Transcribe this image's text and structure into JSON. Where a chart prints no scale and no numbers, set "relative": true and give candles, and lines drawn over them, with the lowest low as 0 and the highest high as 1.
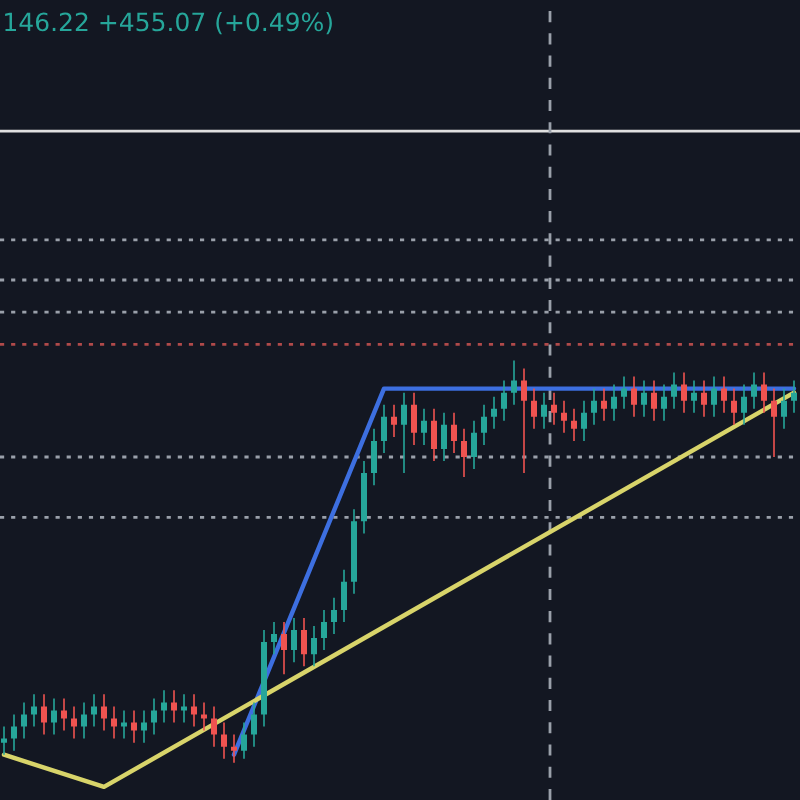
{
  "chart_data": {
    "type": "candlestick",
    "relative": true,
    "annotations": [
      "146.22 +455.07 (+0.49%)"
    ],
    "categories": [
      null,
      null,
      null,
      null,
      null,
      null,
      null,
      null,
      null,
      null,
      null,
      null,
      null,
      null,
      null,
      null,
      null,
      null,
      null,
      null,
      null,
      null,
      null,
      null,
      null,
      null,
      null,
      null,
      null,
      null,
      null,
      null,
      null,
      null,
      null,
      null,
      null,
      null,
      null,
      null,
      null,
      null,
      null,
      null,
      null,
      null,
      null,
      null,
      null,
      null,
      null,
      null,
      null,
      null,
      null,
      null,
      null,
      null,
      null,
      null,
      null,
      null,
      null,
      null,
      null,
      null,
      null,
      null,
      null,
      null,
      null,
      null,
      null,
      null,
      null,
      null,
      null,
      null,
      null,
      null
    ],
    "ohlc": [
      [
        0.05,
        0.09,
        0.02,
        0.06
      ],
      [
        0.06,
        0.12,
        0.03,
        0.09
      ],
      [
        0.09,
        0.15,
        0.06,
        0.12
      ],
      [
        0.12,
        0.17,
        0.09,
        0.14
      ],
      [
        0.14,
        0.17,
        0.07,
        0.1
      ],
      [
        0.1,
        0.16,
        0.07,
        0.13
      ],
      [
        0.13,
        0.16,
        0.08,
        0.11
      ],
      [
        0.11,
        0.14,
        0.06,
        0.09
      ],
      [
        0.09,
        0.15,
        0.06,
        0.12
      ],
      [
        0.12,
        0.17,
        0.09,
        0.14
      ],
      [
        0.14,
        0.17,
        0.08,
        0.11
      ],
      [
        0.11,
        0.14,
        0.06,
        0.09
      ],
      [
        0.09,
        0.13,
        0.06,
        0.1
      ],
      [
        0.1,
        0.13,
        0.05,
        0.08
      ],
      [
        0.08,
        0.13,
        0.05,
        0.1
      ],
      [
        0.1,
        0.16,
        0.07,
        0.13
      ],
      [
        0.13,
        0.18,
        0.1,
        0.15
      ],
      [
        0.15,
        0.18,
        0.1,
        0.13
      ],
      [
        0.13,
        0.17,
        0.1,
        0.14
      ],
      [
        0.14,
        0.17,
        0.09,
        0.12
      ],
      [
        0.12,
        0.15,
        0.08,
        0.11
      ],
      [
        0.11,
        0.14,
        0.04,
        0.07
      ],
      [
        0.07,
        0.1,
        0.01,
        0.04
      ],
      [
        0.04,
        0.07,
        0,
        0.03
      ],
      [
        0.03,
        0.1,
        0.01,
        0.07
      ],
      [
        0.07,
        0.15,
        0.04,
        0.12
      ],
      [
        0.12,
        0.33,
        0.09,
        0.3
      ],
      [
        0.3,
        0.35,
        0.27,
        0.32
      ],
      [
        0.32,
        0.35,
        0.22,
        0.28
      ],
      [
        0.28,
        0.36,
        0.25,
        0.33
      ],
      [
        0.33,
        0.36,
        0.24,
        0.27
      ],
      [
        0.27,
        0.34,
        0.24,
        0.31
      ],
      [
        0.31,
        0.38,
        0.28,
        0.35
      ],
      [
        0.35,
        0.41,
        0.32,
        0.38
      ],
      [
        0.38,
        0.48,
        0.35,
        0.45
      ],
      [
        0.45,
        0.63,
        0.42,
        0.6
      ],
      [
        0.6,
        0.75,
        0.57,
        0.72
      ],
      [
        0.72,
        0.83,
        0.69,
        0.8
      ],
      [
        0.8,
        0.89,
        0.77,
        0.86
      ],
      [
        0.86,
        0.89,
        0.81,
        0.84
      ],
      [
        0.84,
        0.92,
        0.72,
        0.89
      ],
      [
        0.89,
        0.92,
        0.79,
        0.82
      ],
      [
        0.82,
        0.88,
        0.79,
        0.85
      ],
      [
        0.85,
        0.88,
        0.75,
        0.78
      ],
      [
        0.78,
        0.87,
        0.75,
        0.84
      ],
      [
        0.84,
        0.87,
        0.77,
        0.8
      ],
      [
        0.8,
        0.83,
        0.71,
        0.76
      ],
      [
        0.76,
        0.85,
        0.73,
        0.82
      ],
      [
        0.82,
        0.89,
        0.79,
        0.86
      ],
      [
        0.86,
        0.91,
        0.83,
        0.88
      ],
      [
        0.88,
        0.95,
        0.85,
        0.92
      ],
      [
        0.92,
        1,
        0.89,
        0.95
      ],
      [
        0.95,
        0.98,
        0.72,
        0.9
      ],
      [
        0.9,
        0.93,
        0.83,
        0.86
      ],
      [
        0.86,
        0.92,
        0.83,
        0.89
      ],
      [
        0.89,
        0.92,
        0.84,
        0.87
      ],
      [
        0.87,
        0.9,
        0.82,
        0.85
      ],
      [
        0.85,
        0.88,
        0.8,
        0.83
      ],
      [
        0.83,
        0.9,
        0.8,
        0.87
      ],
      [
        0.87,
        0.93,
        0.84,
        0.9
      ],
      [
        0.9,
        0.93,
        0.85,
        0.88
      ],
      [
        0.88,
        0.94,
        0.85,
        0.91
      ],
      [
        0.91,
        0.96,
        0.88,
        0.93
      ],
      [
        0.93,
        0.96,
        0.86,
        0.89
      ],
      [
        0.89,
        0.95,
        0.86,
        0.92
      ],
      [
        0.92,
        0.95,
        0.85,
        0.88
      ],
      [
        0.88,
        0.94,
        0.85,
        0.91
      ],
      [
        0.91,
        0.97,
        0.88,
        0.94
      ],
      [
        0.94,
        0.97,
        0.87,
        0.9
      ],
      [
        0.9,
        0.95,
        0.87,
        0.92
      ],
      [
        0.92,
        0.95,
        0.86,
        0.89
      ],
      [
        0.89,
        0.96,
        0.86,
        0.93
      ],
      [
        0.93,
        0.96,
        0.87,
        0.9
      ],
      [
        0.9,
        0.93,
        0.84,
        0.87
      ],
      [
        0.87,
        0.94,
        0.84,
        0.91
      ],
      [
        0.91,
        0.97,
        0.88,
        0.94
      ],
      [
        0.94,
        0.97,
        0.87,
        0.9
      ],
      [
        0.9,
        0.93,
        0.76,
        0.86
      ],
      [
        0.86,
        0.93,
        0.83,
        0.9
      ],
      [
        0.9,
        0.95,
        0.87,
        0.92
      ]
    ],
    "series": [
      {
        "type": "line",
        "color": "#3d6fe0",
        "values": [
          null,
          null,
          null,
          null,
          null,
          null,
          null,
          null,
          null,
          null,
          null,
          null,
          null,
          null,
          null,
          null,
          null,
          null,
          null,
          null,
          null,
          null,
          null,
          0.02,
          null,
          null,
          null,
          null,
          null,
          null,
          null,
          null,
          null,
          null,
          null,
          null,
          null,
          null,
          0.93,
          null,
          null,
          null,
          null,
          null,
          null,
          null,
          null,
          null,
          null,
          null,
          null,
          null,
          null,
          null,
          null,
          null,
          null,
          null,
          null,
          null,
          null,
          null,
          null,
          null,
          null,
          null,
          null,
          null,
          null,
          null,
          null,
          null,
          null,
          null,
          null,
          null,
          null,
          null,
          null,
          0.93
        ]
      },
      {
        "type": "line",
        "color": "#d8d46a",
        "values": [
          0.02,
          null,
          null,
          null,
          null,
          null,
          null,
          null,
          null,
          null,
          -0.06,
          null,
          null,
          null,
          null,
          null,
          null,
          null,
          null,
          null,
          null,
          null,
          null,
          null,
          null,
          null,
          null,
          null,
          null,
          null,
          null,
          null,
          null,
          null,
          null,
          null,
          null,
          null,
          null,
          null,
          null,
          null,
          null,
          null,
          null,
          null,
          null,
          null,
          null,
          null,
          null,
          null,
          null,
          null,
          null,
          null,
          null,
          null,
          null,
          null,
          null,
          null,
          null,
          null,
          null,
          null,
          null,
          null,
          null,
          null,
          null,
          null,
          null,
          null,
          null,
          null,
          null,
          null,
          null,
          0.92
        ]
      }
    ],
    "ref_lines": [
      {
        "axis": "y",
        "value": 1.57,
        "color": "#e0e0e0",
        "line_style": "solid"
      },
      {
        "axis": "y",
        "value": 1.3,
        "color": "#9aa0aa",
        "line_style": "dotted"
      },
      {
        "axis": "y",
        "value": 1.2,
        "color": "#9aa0aa",
        "line_style": "dotted"
      },
      {
        "axis": "y",
        "value": 1.12,
        "color": "#9aa0aa",
        "line_style": "dotted"
      },
      {
        "axis": "y",
        "value": 1.04,
        "color": "#b04a4a",
        "line_style": "dotted"
      },
      {
        "axis": "y",
        "value": 0.76,
        "color": "#9aa0aa",
        "line_style": "dotted"
      },
      {
        "axis": "y",
        "value": 0.61,
        "color": "#9aa0aa",
        "line_style": "dotted"
      }
    ]
  }
}
